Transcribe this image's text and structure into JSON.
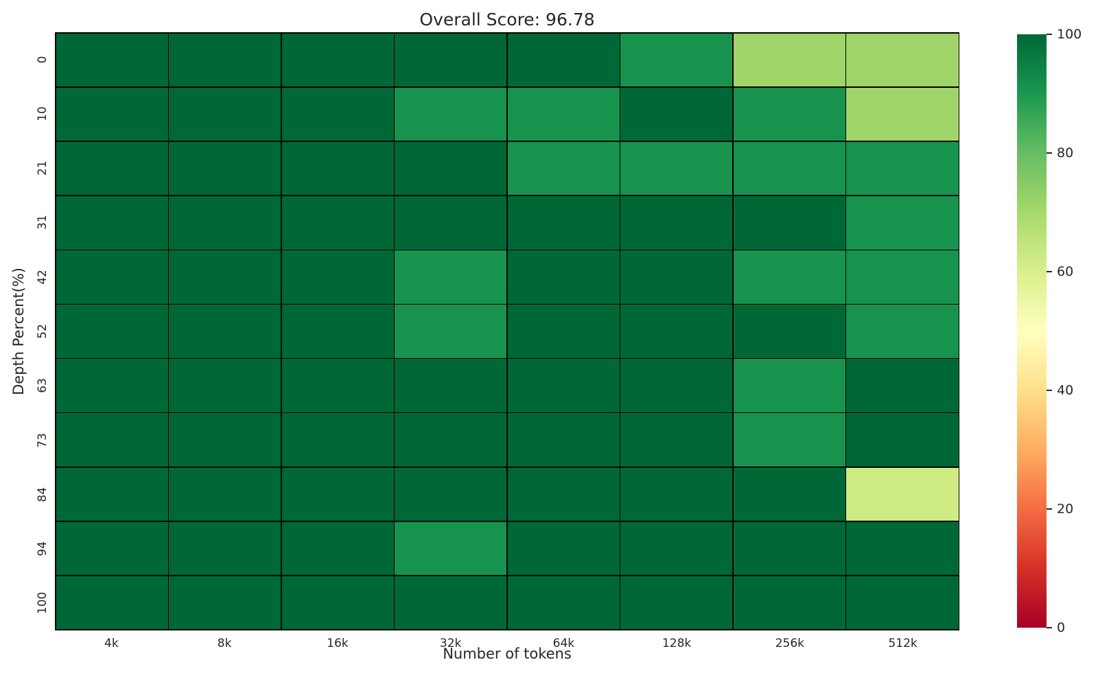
{
  "title": "Overall Score: 96.78",
  "xlabel": "Number of tokens",
  "ylabel": "Depth Percent(%)",
  "chart_data": {
    "type": "heatmap",
    "title": "Overall Score: 96.78",
    "xlabel": "Number of tokens",
    "ylabel": "Depth Percent(%)",
    "x_categories": [
      "4k",
      "8k",
      "16k",
      "32k",
      "64k",
      "128k",
      "256k",
      "512k"
    ],
    "y_categories": [
      "0",
      "10",
      "21",
      "31",
      "42",
      "52",
      "63",
      "73",
      "84",
      "94",
      "100"
    ],
    "values": [
      [
        100,
        100,
        100,
        100,
        100,
        91,
        71,
        71
      ],
      [
        100,
        100,
        100,
        91,
        91,
        100,
        91,
        71
      ],
      [
        100,
        100,
        100,
        100,
        91,
        91,
        91,
        91
      ],
      [
        100,
        100,
        100,
        100,
        100,
        100,
        100,
        91
      ],
      [
        100,
        100,
        100,
        91,
        100,
        100,
        91,
        91
      ],
      [
        100,
        100,
        100,
        91,
        100,
        100,
        100,
        91
      ],
      [
        100,
        100,
        100,
        100,
        100,
        100,
        91,
        100
      ],
      [
        100,
        100,
        100,
        100,
        100,
        100,
        91,
        100
      ],
      [
        100,
        100,
        100,
        100,
        100,
        100,
        100,
        62
      ],
      [
        100,
        100,
        100,
        91,
        100,
        100,
        100,
        100
      ],
      [
        100,
        100,
        100,
        100,
        100,
        100,
        100,
        100
      ]
    ],
    "vmin": 0,
    "vmax": 100,
    "colorbar_ticks": [
      "0",
      "20",
      "40",
      "60",
      "80",
      "100"
    ],
    "colormap": "RdYlGn",
    "colormap_stops": [
      "#a50026",
      "#d73027",
      "#f46d43",
      "#fdae61",
      "#fee08b",
      "#ffffbf",
      "#d9ef8b",
      "#a6d96a",
      "#66bd63",
      "#1a9850",
      "#006837"
    ],
    "grid_line_color": "#000000",
    "legend_position": "right-colorbar",
    "grid": "off"
  },
  "colors": {
    "background": "#ffffff",
    "text": "#262626",
    "cell_max_green": "#006837",
    "cell_medium_green": "#17934e",
    "cell_light_green": "#a0d669",
    "cell_pale_green": "#cfeb84"
  }
}
